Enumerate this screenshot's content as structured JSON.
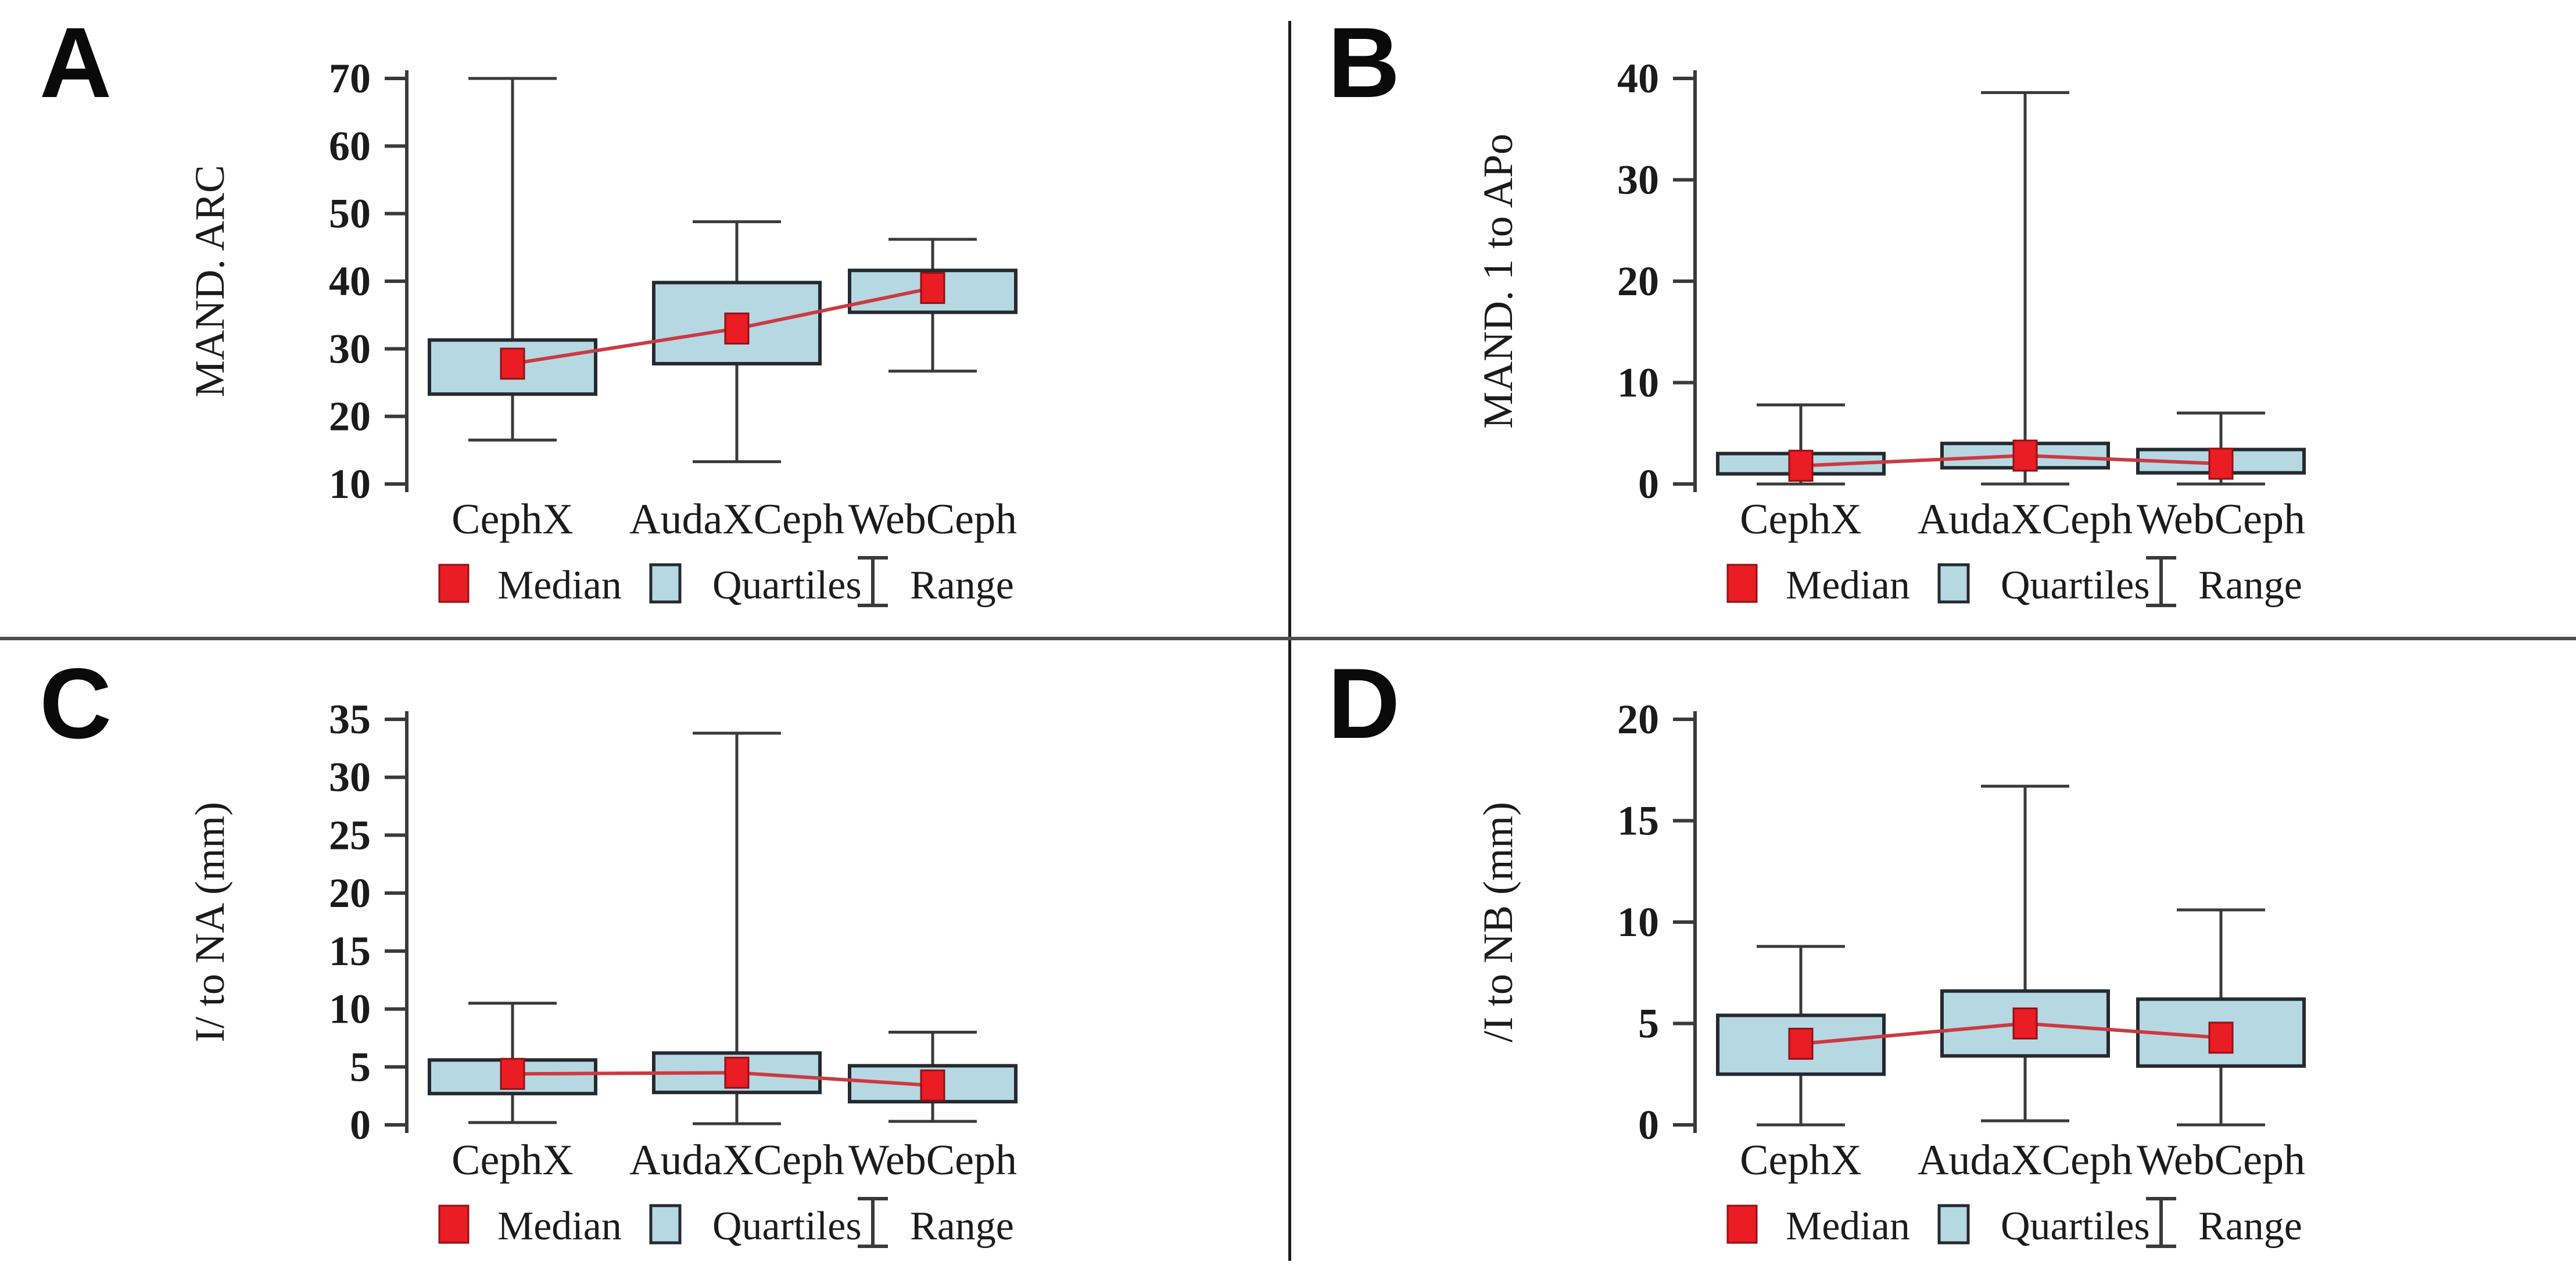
{
  "figure": {
    "background": "#ffffff",
    "panel_letters": [
      "A",
      "B",
      "C",
      "D"
    ]
  },
  "colors": {
    "box_fill": "#b6d8e3",
    "box_stroke": "#252a2e",
    "whisker": "#3a3a3a",
    "median_fill": "#ea1c24",
    "median_stroke": "#8f1216",
    "median_line": "#cb3a42",
    "text": "#1b1b1b",
    "divider": "#4f4f4f"
  },
  "chart_data": [
    {
      "type": "box",
      "panel": "A",
      "title": "",
      "xlabel": "",
      "ylabel": "MAND. ARC",
      "ylim": [
        10,
        70
      ],
      "yticks": [
        10,
        20,
        30,
        40,
        50,
        60,
        70
      ],
      "grid": false,
      "legend_position": "bottom",
      "categories": [
        "CephX",
        "AudaXCeph",
        "WebCeph"
      ],
      "series": [
        {
          "name": "CephX",
          "min": 16.5,
          "q1": 23.3,
          "median": 27.8,
          "q3": 31.3,
          "max": 70
        },
        {
          "name": "AudaXCeph",
          "min": 13.3,
          "q1": 27.8,
          "median": 33,
          "q3": 39.8,
          "max": 48.8
        },
        {
          "name": "WebCeph",
          "min": 26.7,
          "q1": 35.4,
          "median": 39,
          "q3": 41.6,
          "max": 46.2
        }
      ],
      "legend": [
        "Median",
        "Quartiles",
        "Range"
      ]
    },
    {
      "type": "box",
      "panel": "B",
      "title": "",
      "xlabel": "",
      "ylabel": "MAND. 1 to APo",
      "ylim": [
        0,
        40
      ],
      "yticks": [
        0,
        10,
        20,
        30,
        40
      ],
      "grid": false,
      "legend_position": "bottom",
      "categories": [
        "CephX",
        "AudaXCeph",
        "WebCeph"
      ],
      "series": [
        {
          "name": "CephX",
          "min": 0,
          "q1": 1.0,
          "median": 1.8,
          "q3": 3.0,
          "max": 7.8
        },
        {
          "name": "AudaXCeph",
          "min": 0,
          "q1": 1.6,
          "median": 2.8,
          "q3": 4.0,
          "max": 38.6
        },
        {
          "name": "WebCeph",
          "min": 0,
          "q1": 1.1,
          "median": 2.0,
          "q3": 3.4,
          "max": 7.0
        }
      ],
      "legend": [
        "Median",
        "Quartiles",
        "Range"
      ]
    },
    {
      "type": "box",
      "panel": "C",
      "title": "",
      "xlabel": "",
      "ylabel": "I/ to NA (mm)",
      "ylim": [
        0,
        35
      ],
      "yticks": [
        0,
        5,
        10,
        15,
        20,
        25,
        30,
        35
      ],
      "grid": false,
      "legend_position": "bottom",
      "categories": [
        "CephX",
        "AudaXCeph",
        "WebCeph"
      ],
      "series": [
        {
          "name": "CephX",
          "min": 0.2,
          "q1": 2.7,
          "median": 4.4,
          "q3": 5.6,
          "max": 10.5
        },
        {
          "name": "AudaXCeph",
          "min": 0.1,
          "q1": 2.8,
          "median": 4.5,
          "q3": 6.2,
          "max": 33.8
        },
        {
          "name": "WebCeph",
          "min": 0.3,
          "q1": 2.0,
          "median": 3.4,
          "q3": 5.1,
          "max": 8.0
        }
      ],
      "legend": [
        "Median",
        "Quartiles",
        "Range"
      ]
    },
    {
      "type": "box",
      "panel": "D",
      "title": "",
      "xlabel": "",
      "ylabel": "/I to NB (mm)",
      "ylim": [
        0,
        20
      ],
      "yticks": [
        0,
        5,
        10,
        15,
        20
      ],
      "grid": false,
      "legend_position": "bottom",
      "categories": [
        "CephX",
        "AudaXCeph",
        "WebCeph"
      ],
      "series": [
        {
          "name": "CephX",
          "min": 0,
          "q1": 2.5,
          "median": 4.0,
          "q3": 5.4,
          "max": 8.8
        },
        {
          "name": "AudaXCeph",
          "min": 0.2,
          "q1": 3.4,
          "median": 5.0,
          "q3": 6.6,
          "max": 16.7
        },
        {
          "name": "WebCeph",
          "min": 0,
          "q1": 2.9,
          "median": 4.3,
          "q3": 6.2,
          "max": 10.6
        }
      ],
      "legend": [
        "Median",
        "Quartiles",
        "Range"
      ]
    }
  ]
}
